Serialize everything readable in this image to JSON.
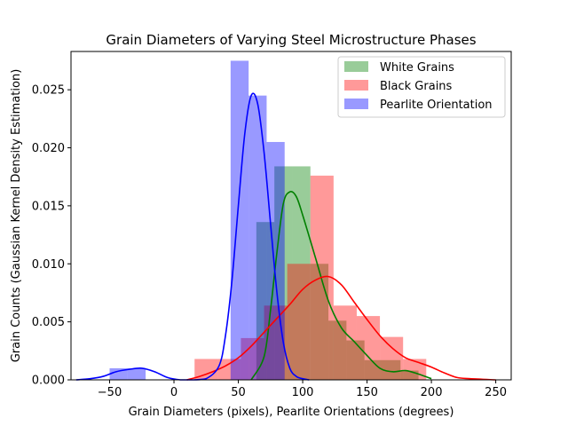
{
  "chart_data": {
    "type": "histogram",
    "title": "Grain Diameters of Varying Steel Microstructure Phases",
    "xlabel": "Grain Diameters (pixels), Pearlite Orientations (degrees)",
    "ylabel": "Grain Counts (Gaussian Kernel Density Estimation)",
    "xlim": [
      -80,
      262
    ],
    "ylim": [
      0,
      0.0283
    ],
    "xticks": [
      -50,
      0,
      50,
      100,
      150,
      200,
      250
    ],
    "yticks": [
      0.0,
      0.005,
      0.01,
      0.015,
      0.02,
      0.025
    ],
    "ytick_labels": [
      "0.000",
      "0.005",
      "0.010",
      "0.015",
      "0.020",
      "0.025"
    ],
    "legend_position": "top-right",
    "series": [
      {
        "name": "White Grains",
        "color": "#008000",
        "bin_edges": [
          64,
          78,
          92,
          106,
          120,
          134,
          148,
          162,
          176,
          190
        ],
        "values": [
          0.0136,
          0.0184,
          0.0184,
          0.01,
          0.0051,
          0.0034,
          0.0017,
          0.0017,
          0.0008
        ],
        "kde_x": [
          60,
          70,
          75,
          80,
          85,
          90,
          95,
          100,
          110,
          120,
          130,
          140,
          150,
          160,
          170,
          180,
          190,
          200
        ],
        "kde_y": [
          0.0,
          0.002,
          0.006,
          0.011,
          0.0152,
          0.0162,
          0.0158,
          0.0142,
          0.0105,
          0.0068,
          0.0045,
          0.0033,
          0.0021,
          0.001,
          0.0007,
          0.0008,
          0.0005,
          0.0001
        ]
      },
      {
        "name": "Black Grains",
        "color": "#ff0000",
        "bin_edges": [
          16,
          34,
          52,
          70,
          88,
          106,
          124,
          142,
          160,
          178,
          196
        ],
        "values": [
          0.0018,
          0.0018,
          0.0036,
          0.0064,
          0.01,
          0.0176,
          0.0064,
          0.0055,
          0.0037,
          0.0018
        ],
        "kde_x": [
          10,
          20,
          30,
          40,
          50,
          60,
          70,
          80,
          90,
          100,
          110,
          120,
          130,
          140,
          150,
          160,
          170,
          180,
          190,
          200,
          210,
          220,
          230,
          250
        ],
        "kde_y": [
          0.0,
          0.0003,
          0.0007,
          0.0012,
          0.0019,
          0.0029,
          0.0041,
          0.0053,
          0.0065,
          0.0078,
          0.0086,
          0.0089,
          0.0082,
          0.0067,
          0.0052,
          0.0038,
          0.0027,
          0.0019,
          0.0015,
          0.0011,
          0.0006,
          0.0002,
          0.0001,
          0.0
        ]
      },
      {
        "name": "Pearlite Orientation",
        "color": "#0000ff",
        "bin_edges": [
          -50,
          -36,
          -22,
          -8,
          6,
          20,
          34,
          44,
          58,
          72,
          86
        ],
        "values": [
          0.001,
          0.001,
          0.0,
          0.0,
          0.0,
          0.0,
          0.0,
          0.0275,
          0.0245,
          0.0205
        ],
        "kde_x": [
          -76,
          -65,
          -55,
          -45,
          -35,
          -25,
          -15,
          -5,
          5,
          15,
          25,
          35,
          40,
          45,
          50,
          55,
          60,
          65,
          70,
          75,
          80,
          85,
          90,
          95,
          100,
          105
        ],
        "kde_y": [
          0.0,
          0.0001,
          0.0003,
          0.0007,
          0.0009,
          0.001,
          0.0007,
          0.0002,
          0.0,
          0.0,
          0.0001,
          0.0012,
          0.0038,
          0.0085,
          0.015,
          0.0212,
          0.0245,
          0.0238,
          0.0196,
          0.0135,
          0.0075,
          0.0032,
          0.001,
          0.0003,
          0.0001,
          0.0
        ]
      }
    ]
  }
}
